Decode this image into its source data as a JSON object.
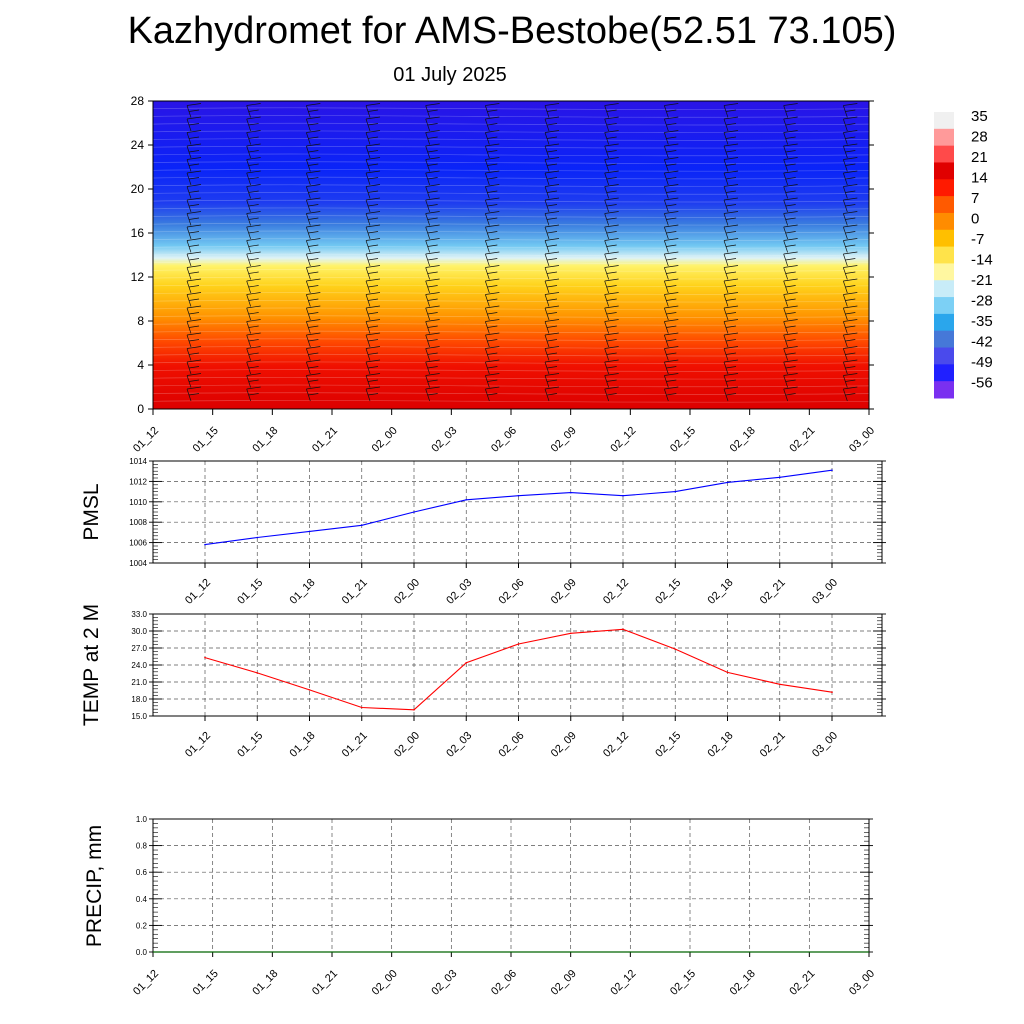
{
  "header": {
    "title": "Kazhydromet for AMS-Bestobe(52.51 73.105)",
    "date": "01 July 2025"
  },
  "colorbar": {
    "labels": [
      "35",
      "28",
      "21",
      "14",
      "7",
      "0",
      "-7",
      "-14",
      "-21",
      "-28",
      "-35",
      "-42",
      "-49",
      "-56"
    ],
    "colors": [
      "#f0f0f0",
      "#ff9a9a",
      "#ff4a4a",
      "#e00000",
      "#ff1a00",
      "#ff5a00",
      "#ff8c00",
      "#ffbf00",
      "#ffe34a",
      "#fff7a0",
      "#c8ecf8",
      "#7cd0f5",
      "#2aa6ec",
      "#4678d8",
      "#4a4aec",
      "#2020ff",
      "#7a30f0"
    ]
  },
  "chart_data": [
    {
      "type": "heatmap",
      "name": "height-time-section",
      "x_ticks": [
        "01_12",
        "01_15",
        "01_18",
        "01_21",
        "02_00",
        "02_03",
        "02_06",
        "02_09",
        "02_12",
        "02_15",
        "02_18",
        "02_21",
        "03_00"
      ],
      "y_ticks": [
        0,
        4,
        8,
        12,
        16,
        20,
        24,
        28
      ],
      "ylim": [
        0,
        28
      ],
      "value_range": [
        -56,
        35
      ]
    },
    {
      "type": "line",
      "ylabel": "PMSL",
      "categories": [
        "01_12",
        "01_15",
        "01_18",
        "01_21",
        "02_00",
        "02_03",
        "02_06",
        "02_09",
        "02_12",
        "02_15",
        "02_18",
        "02_21",
        "03_00"
      ],
      "y_ticks": [
        "1004",
        "1006",
        "1008",
        "1010",
        "1012",
        "1014"
      ],
      "ylim": [
        1004,
        1014
      ],
      "color": "#0000ff",
      "values": [
        1005.8,
        1006.5,
        1007.1,
        1007.7,
        1009.0,
        1010.2,
        1010.6,
        1010.9,
        1010.6,
        1011.0,
        1011.9,
        1012.4,
        1013.1
      ]
    },
    {
      "type": "line",
      "ylabel": "TEMP at 2 M",
      "categories": [
        "01_12",
        "01_15",
        "01_18",
        "01_21",
        "02_00",
        "02_03",
        "02_06",
        "02_09",
        "02_12",
        "02_15",
        "02_18",
        "02_21",
        "03_00"
      ],
      "y_ticks": [
        "15.0",
        "18.0",
        "21.0",
        "24.0",
        "27.0",
        "30.0",
        "33.0"
      ],
      "ylim": [
        15,
        33
      ],
      "color": "#ff0000",
      "values": [
        25.3,
        22.6,
        19.6,
        16.5,
        16.1,
        24.4,
        27.7,
        29.6,
        30.3,
        26.8,
        22.7,
        20.6,
        19.2
      ]
    },
    {
      "type": "line",
      "ylabel": "PRECIP, mm",
      "categories": [
        "01_12",
        "01_15",
        "01_18",
        "01_21",
        "02_00",
        "02_03",
        "02_06",
        "02_09",
        "02_12",
        "02_15",
        "02_18",
        "02_21",
        "03_00"
      ],
      "y_ticks": [
        "0.0",
        "0.2",
        "0.4",
        "0.6",
        "0.8",
        "1.0"
      ],
      "ylim": [
        0,
        1
      ],
      "color": "#006400",
      "values": [
        0,
        0,
        0,
        0,
        0,
        0,
        0,
        0,
        0,
        0,
        0,
        0,
        0
      ]
    }
  ]
}
